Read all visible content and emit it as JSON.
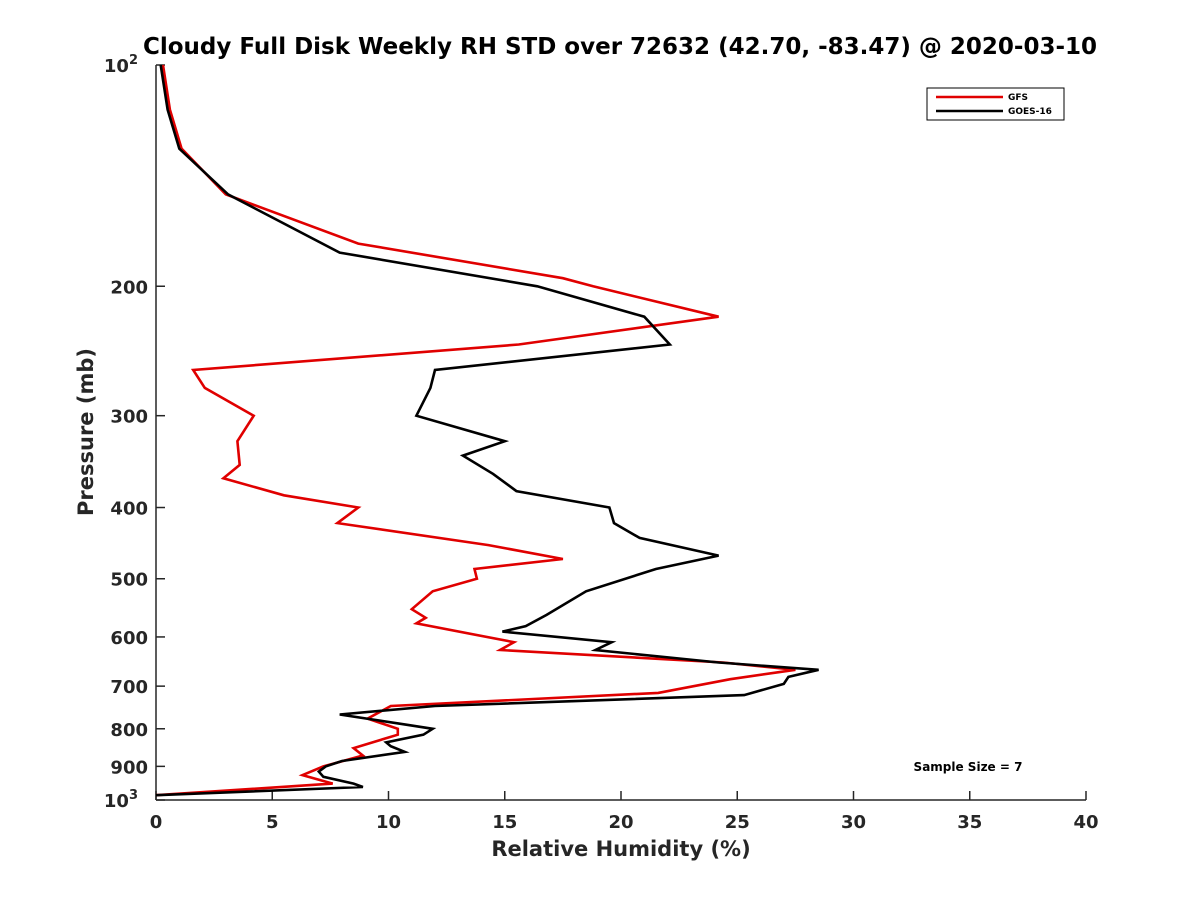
{
  "chart_data": {
    "type": "line",
    "title": "Cloudy Full Disk Weekly RH STD over 72632 (42.70, -83.47) @ 2020-03-10",
    "xlabel": "Relative Humidity (%)",
    "ylabel": "Pressure (mb)",
    "xlim": [
      0,
      40
    ],
    "ylim": [
      100,
      1000
    ],
    "y_scale": "log",
    "y_reversed": true,
    "grid": false,
    "legend_position": "top-right",
    "x_ticks": [
      "0",
      "5",
      "10",
      "15",
      "20",
      "25",
      "30",
      "35",
      "40"
    ],
    "y_ticks": [
      {
        "value": 100,
        "label": "10",
        "sup": "2"
      },
      {
        "value": 200,
        "label": "200"
      },
      {
        "value": 300,
        "label": "300"
      },
      {
        "value": 400,
        "label": "400"
      },
      {
        "value": 500,
        "label": "500"
      },
      {
        "value": 600,
        "label": "600"
      },
      {
        "value": 700,
        "label": "700"
      },
      {
        "value": 800,
        "label": "800"
      },
      {
        "value": 900,
        "label": "900"
      },
      {
        "value": 1000,
        "label": "10",
        "sup": "3"
      }
    ],
    "series": [
      {
        "name": "GFS",
        "color": "#e00000",
        "points": [
          [
            0.3,
            100
          ],
          [
            0.6,
            115
          ],
          [
            1.1,
            130
          ],
          [
            3.0,
            150
          ],
          [
            8.7,
            175
          ],
          [
            17.5,
            195
          ],
          [
            18.8,
            200
          ],
          [
            24.2,
            220
          ],
          [
            15.6,
            240
          ],
          [
            1.6,
            260
          ],
          [
            2.1,
            275
          ],
          [
            4.2,
            300
          ],
          [
            3.5,
            325
          ],
          [
            3.6,
            350
          ],
          [
            2.9,
            365
          ],
          [
            5.5,
            385
          ],
          [
            8.7,
            400
          ],
          [
            7.8,
            420
          ],
          [
            14.3,
            450
          ],
          [
            17.5,
            470
          ],
          [
            13.7,
            485
          ],
          [
            13.8,
            500
          ],
          [
            11.9,
            520
          ],
          [
            11.0,
            550
          ],
          [
            11.6,
            565
          ],
          [
            11.2,
            575
          ],
          [
            15.4,
            610
          ],
          [
            14.8,
            625
          ],
          [
            24.4,
            650
          ],
          [
            27.5,
            665
          ],
          [
            24.7,
            685
          ],
          [
            21.6,
            715
          ],
          [
            10.1,
            745
          ],
          [
            9.1,
            775
          ],
          [
            10.4,
            800
          ],
          [
            10.4,
            815
          ],
          [
            8.5,
            850
          ],
          [
            8.9,
            870
          ],
          [
            7.2,
            900
          ],
          [
            6.3,
            925
          ],
          [
            7.6,
            950
          ],
          [
            0.0,
            985
          ]
        ]
      },
      {
        "name": "GOES-16",
        "color": "#000000",
        "points": [
          [
            0.2,
            100
          ],
          [
            0.5,
            115
          ],
          [
            1.0,
            130
          ],
          [
            3.1,
            150
          ],
          [
            7.9,
            180
          ],
          [
            16.4,
            200
          ],
          [
            21.0,
            220
          ],
          [
            22.1,
            240
          ],
          [
            12.0,
            260
          ],
          [
            11.8,
            275
          ],
          [
            11.2,
            300
          ],
          [
            15.0,
            325
          ],
          [
            13.2,
            340
          ],
          [
            14.5,
            360
          ],
          [
            15.5,
            380
          ],
          [
            19.5,
            400
          ],
          [
            19.7,
            420
          ],
          [
            20.8,
            440
          ],
          [
            24.2,
            465
          ],
          [
            21.5,
            485
          ],
          [
            18.5,
            520
          ],
          [
            16.8,
            560
          ],
          [
            15.9,
            580
          ],
          [
            14.9,
            590
          ],
          [
            19.6,
            610
          ],
          [
            18.9,
            625
          ],
          [
            24.2,
            650
          ],
          [
            28.5,
            665
          ],
          [
            27.2,
            680
          ],
          [
            27.0,
            695
          ],
          [
            25.3,
            720
          ],
          [
            12.0,
            745
          ],
          [
            7.9,
            765
          ],
          [
            10.8,
            790
          ],
          [
            11.9,
            800
          ],
          [
            11.5,
            815
          ],
          [
            9.9,
            835
          ],
          [
            10.1,
            845
          ],
          [
            10.7,
            860
          ],
          [
            8.0,
            885
          ],
          [
            7.3,
            900
          ],
          [
            7.0,
            915
          ],
          [
            7.2,
            930
          ],
          [
            8.5,
            950
          ],
          [
            8.9,
            960
          ],
          [
            0.0,
            985
          ]
        ]
      }
    ],
    "annotations": [
      "Sample Size = 7"
    ]
  }
}
